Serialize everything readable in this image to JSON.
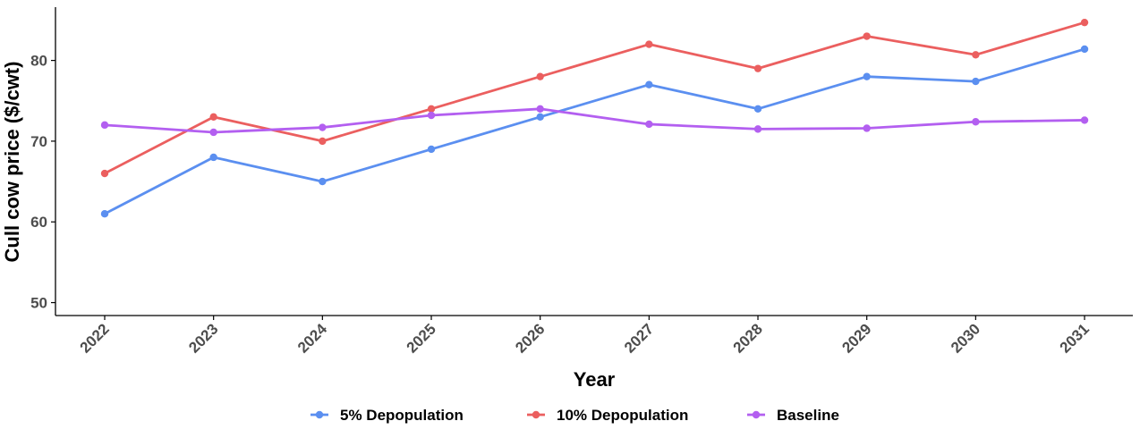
{
  "chart_data": {
    "type": "line",
    "xlabel": "Year",
    "ylabel": "Cull cow price ($/cwt)",
    "categories": [
      "2022",
      "2023",
      "2024",
      "2025",
      "2026",
      "2027",
      "2028",
      "2029",
      "2030",
      "2031"
    ],
    "ylim": [
      48.4,
      86.6
    ],
    "yticks": [
      50,
      60,
      70,
      80
    ],
    "grid": false,
    "legend_position": "bottom",
    "series": [
      {
        "name": "5% Depopulation",
        "color": "#5b8ff0",
        "values": [
          61,
          68,
          65,
          69,
          73,
          77,
          74,
          78,
          77.4,
          81.4
        ]
      },
      {
        "name": "10% Depopulation",
        "color": "#eb5f5f",
        "values": [
          66,
          73,
          70,
          74,
          78,
          82,
          79,
          83,
          80.7,
          84.7
        ]
      },
      {
        "name": "Baseline",
        "color": "#b35ff0",
        "values": [
          72,
          71.1,
          71.7,
          73.2,
          74,
          72.1,
          71.5,
          71.6,
          72.4,
          72.6
        ]
      }
    ]
  }
}
